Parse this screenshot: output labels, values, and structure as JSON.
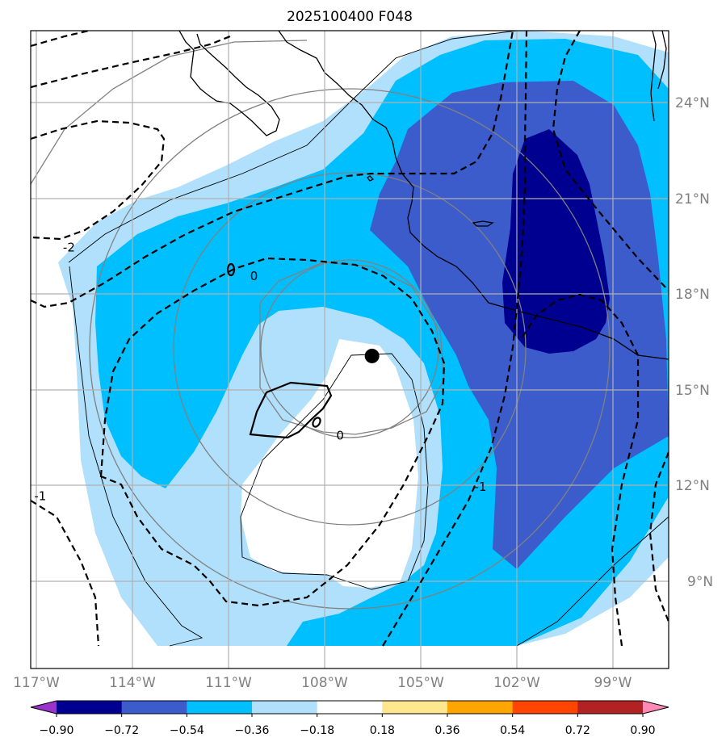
{
  "title": "2025100400 F048",
  "map": {
    "projection": "PlateCarree",
    "lon_range": [
      -118,
      -98
    ],
    "lat_range": [
      6.5,
      26.5
    ],
    "lon_ticks": [
      {
        "value": -117,
        "label": "117°W"
      },
      {
        "value": -114,
        "label": "114°W"
      },
      {
        "value": -111,
        "label": "111°W"
      },
      {
        "value": -108,
        "label": "108°W"
      },
      {
        "value": -105,
        "label": "105°W"
      },
      {
        "value": -102,
        "label": "102°W"
      },
      {
        "value": -99,
        "label": "99°W"
      }
    ],
    "lat_ticks": [
      {
        "value": 24,
        "label": "24°N"
      },
      {
        "value": 21,
        "label": "21°N"
      },
      {
        "value": 18,
        "label": "18°N"
      },
      {
        "value": 15,
        "label": "15°N"
      },
      {
        "value": 12,
        "label": "12°N"
      },
      {
        "value": 9,
        "label": "9°N"
      }
    ],
    "gridline_color": "#b0b0b0"
  },
  "storm_center": {
    "lon": -107.3,
    "lat": 16.3
  },
  "contour_labels": [
    {
      "text": "-2",
      "lon": -116.8,
      "lat": 19.7
    },
    {
      "text": "0",
      "lon": -111.0,
      "lat": 18.8
    },
    {
      "text": "0",
      "lon": -108.3,
      "lat": 13.8
    },
    {
      "text": "-1",
      "lon": -117.7,
      "lat": 11.9
    },
    {
      "text": "-1",
      "lon": -103.9,
      "lat": 12.2
    }
  ],
  "colorbar": {
    "levels": [
      -0.9,
      -0.72,
      -0.54,
      -0.36,
      -0.18,
      0.18,
      0.36,
      0.54,
      0.72,
      0.9
    ],
    "tick_labels": [
      "−0.90",
      "−0.72",
      "−0.54",
      "−0.36",
      "−0.18",
      "0.18",
      "0.36",
      "0.54",
      "0.72",
      "0.90"
    ],
    "colors": [
      "#9933cc",
      "#000090",
      "#3c5ccc",
      "#00bfff",
      "#b0e0fb",
      "#ffffff",
      "#ffe78f",
      "#ffa500",
      "#ff4500",
      "#b22222",
      "#ff88b4"
    ],
    "extend": "both"
  }
}
